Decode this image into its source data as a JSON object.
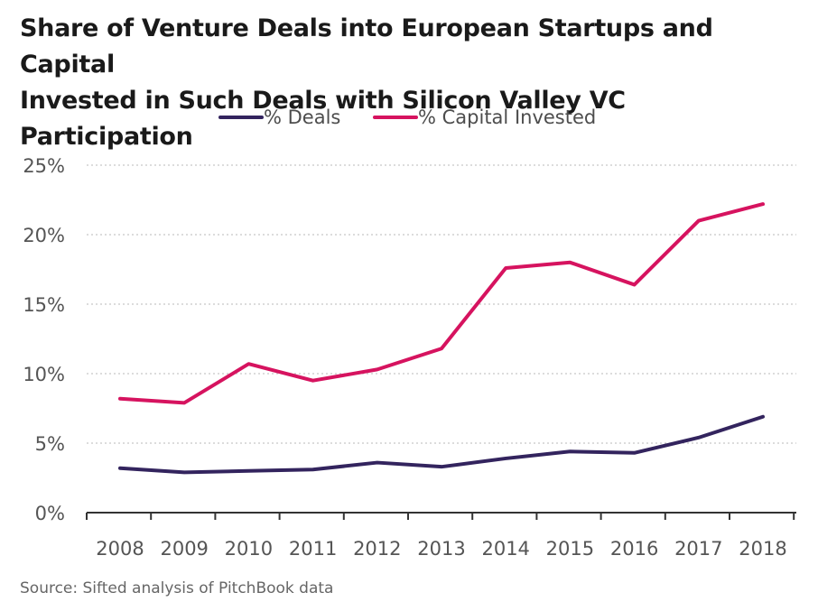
{
  "title": {
    "line1": "Share of Venture Deals into European Startups and Capital",
    "line2": "Invested in Such Deals with Silicon Valley VC Participation"
  },
  "source": "Source: Sifted analysis of PitchBook data",
  "colors": {
    "deals": "#33245e",
    "capital": "#d6135f",
    "grid": "#c8c8c8",
    "axis": "#333333"
  },
  "chart_data": {
    "type": "line",
    "title": "Share of Venture Deals into European Startups and Capital Invested in Such Deals with Silicon Valley VC Participation",
    "x": [
      "2008",
      "2009",
      "2010",
      "2011",
      "2012",
      "2013",
      "2014",
      "2015",
      "2016",
      "2017",
      "2018"
    ],
    "series": [
      {
        "name": "% Deals",
        "values": [
          3.2,
          2.9,
          3.0,
          3.1,
          3.6,
          3.3,
          3.9,
          4.4,
          4.3,
          5.4,
          6.9
        ]
      },
      {
        "name": "% Capital Invested",
        "values": [
          8.2,
          7.9,
          10.7,
          9.5,
          10.3,
          11.8,
          17.6,
          18.0,
          16.4,
          21.0,
          22.2
        ]
      }
    ],
    "y_ticks": [
      "0%",
      "5%",
      "10%",
      "15%",
      "20%",
      "25%"
    ],
    "ylim": [
      0,
      25
    ],
    "grid": "horizontal dotted",
    "legend": "top-center"
  }
}
